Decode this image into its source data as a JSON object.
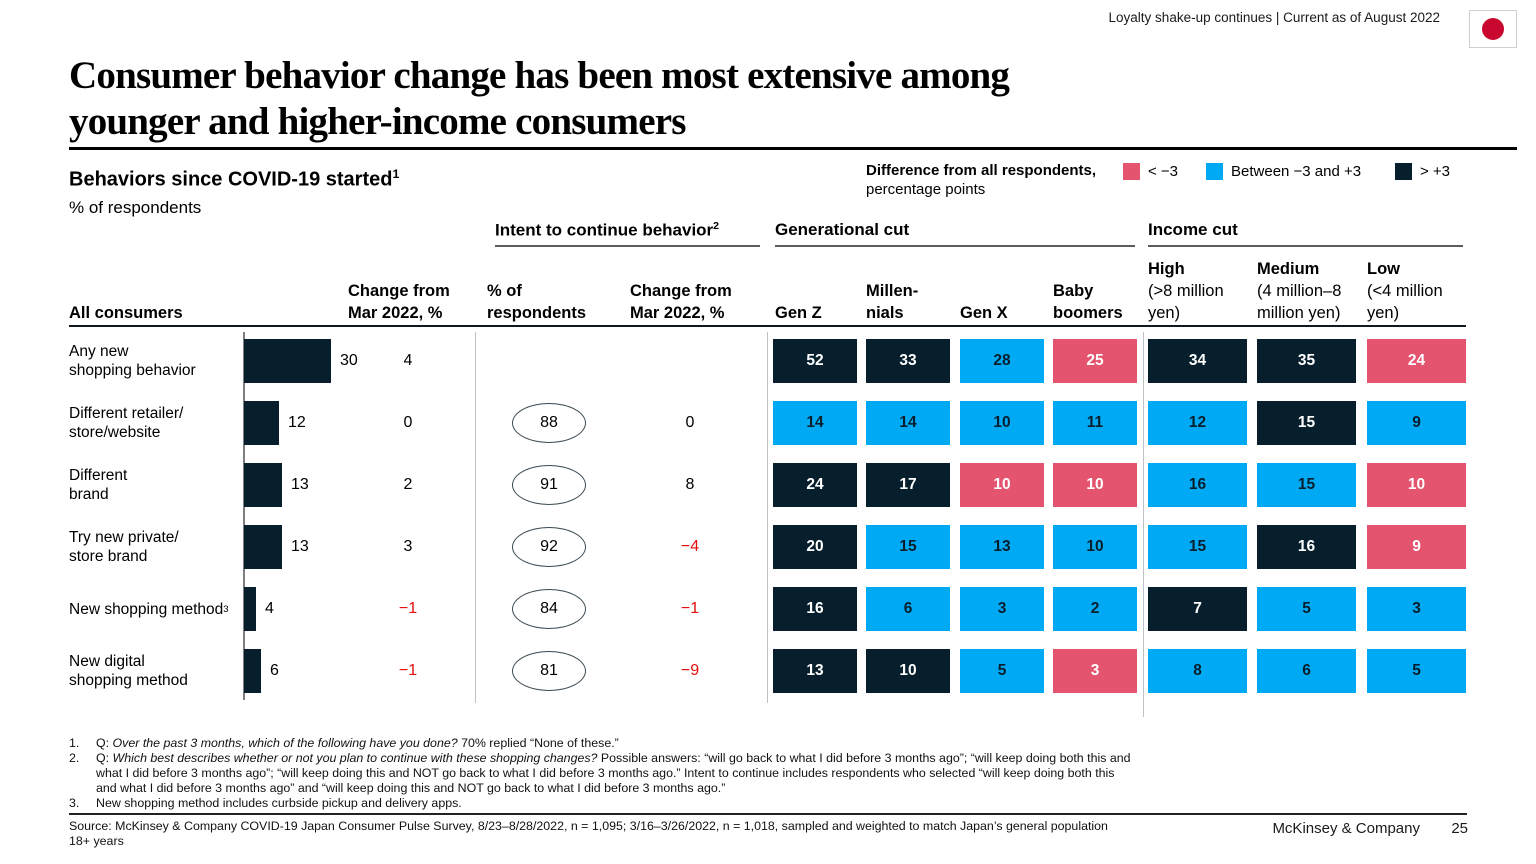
{
  "page": {
    "header_note": "Loyalty shake-up continues | Current as of August 2022",
    "title": "Consumer behavior change has been most extensive among\nyounger and higher-income consumers",
    "footer_brand": "McKinsey & Company",
    "footer_page": "25",
    "flag_red": "#c9082f",
    "negative_color": "#e50b0b"
  },
  "exhibit": {
    "title": "Behaviors since COVID-19 started",
    "title_sup": "1",
    "subtitle": "% of respondents"
  },
  "legend": {
    "title_bold": "Difference from all respondents,",
    "title_line2": "percentage points",
    "items": [
      {
        "label": "< −3",
        "color": "#e5546f",
        "band": "below"
      },
      {
        "label": "Between −3 and +3",
        "color": "#00a9f4",
        "band": "mid"
      },
      {
        "label": "> +3",
        "color": "#071f2d",
        "band": "above"
      }
    ]
  },
  "groups": {
    "intent_label": "Intent to continue behavior",
    "intent_sup": "2",
    "generational_label": "Generational cut",
    "income_label": "Income cut"
  },
  "columns": {
    "all_consumers": "All consumers",
    "change1": "Change from\nMar 2022, %",
    "pct_respondents": "% of\nrespondents",
    "change2": "Change from\nMar 2022, %",
    "gen": [
      "Gen Z",
      "Millen-\nnials",
      "Gen X",
      "Baby\nboomers"
    ],
    "income": [
      {
        "name": "High",
        "range": "(>8 million\nyen)"
      },
      {
        "name": "Medium",
        "range": "(4 million–8\nmillion yen)"
      },
      {
        "name": "Low",
        "range": "(<4 million\nyen)"
      }
    ]
  },
  "chart_data": {
    "type": "table",
    "title": "Behaviors since COVID-19 started",
    "unit": "% of respondents",
    "band_legend": {
      "below": "< −3",
      "mid": "Between −3 and +3",
      "above": "> +3"
    },
    "cell_columns": [
      "Gen Z",
      "Millennials",
      "Gen X",
      "Baby boomers",
      "High (>8 million yen)",
      "Medium (4 million–8 million yen)",
      "Low (<4 million yen)"
    ],
    "rows": [
      {
        "label": "Any new\nshopping behavior",
        "sup": "",
        "all_consumers": 30,
        "change_from_mar": "4",
        "change_negative": false,
        "intent_pct": null,
        "intent_change": null,
        "intent_change_negative": false,
        "cells": [
          {
            "value": "52",
            "band": "above"
          },
          {
            "value": "33",
            "band": "above"
          },
          {
            "value": "28",
            "band": "mid"
          },
          {
            "value": "25",
            "band": "below"
          },
          {
            "value": "34",
            "band": "above"
          },
          {
            "value": "35",
            "band": "above"
          },
          {
            "value": "24",
            "band": "below"
          }
        ]
      },
      {
        "label": "Different retailer/\nstore/website",
        "sup": "",
        "all_consumers": 12,
        "change_from_mar": "0",
        "change_negative": false,
        "intent_pct": "88",
        "intent_change": "0",
        "intent_change_negative": false,
        "cells": [
          {
            "value": "14",
            "band": "mid"
          },
          {
            "value": "14",
            "band": "mid"
          },
          {
            "value": "10",
            "band": "mid"
          },
          {
            "value": "11",
            "band": "mid"
          },
          {
            "value": "12",
            "band": "mid"
          },
          {
            "value": "15",
            "band": "above"
          },
          {
            "value": "9",
            "band": "mid"
          }
        ]
      },
      {
        "label": "Different\nbrand",
        "sup": "",
        "all_consumers": 13,
        "change_from_mar": "2",
        "change_negative": false,
        "intent_pct": "91",
        "intent_change": "8",
        "intent_change_negative": false,
        "cells": [
          {
            "value": "24",
            "band": "above"
          },
          {
            "value": "17",
            "band": "above"
          },
          {
            "value": "10",
            "band": "below"
          },
          {
            "value": "10",
            "band": "below"
          },
          {
            "value": "16",
            "band": "mid"
          },
          {
            "value": "15",
            "band": "mid"
          },
          {
            "value": "10",
            "band": "below"
          }
        ]
      },
      {
        "label": "Try new private/\nstore brand",
        "sup": "",
        "all_consumers": 13,
        "change_from_mar": "3",
        "change_negative": false,
        "intent_pct": "92",
        "intent_change": "−4",
        "intent_change_negative": true,
        "cells": [
          {
            "value": "20",
            "band": "above"
          },
          {
            "value": "15",
            "band": "mid"
          },
          {
            "value": "13",
            "band": "mid"
          },
          {
            "value": "10",
            "band": "mid"
          },
          {
            "value": "15",
            "band": "mid"
          },
          {
            "value": "16",
            "band": "above"
          },
          {
            "value": "9",
            "band": "below"
          }
        ]
      },
      {
        "label": "New shopping method",
        "sup": "3",
        "all_consumers": 4,
        "change_from_mar": "−1",
        "change_negative": true,
        "intent_pct": "84",
        "intent_change": "−1",
        "intent_change_negative": true,
        "cells": [
          {
            "value": "16",
            "band": "above"
          },
          {
            "value": "6",
            "band": "mid"
          },
          {
            "value": "3",
            "band": "mid"
          },
          {
            "value": "2",
            "band": "mid"
          },
          {
            "value": "7",
            "band": "above"
          },
          {
            "value": "5",
            "band": "mid"
          },
          {
            "value": "3",
            "band": "mid"
          }
        ]
      },
      {
        "label": "New digital\nshopping method",
        "sup": "",
        "all_consumers": 6,
        "change_from_mar": "−1",
        "change_negative": true,
        "intent_pct": "81",
        "intent_change": "−9",
        "intent_change_negative": true,
        "cells": [
          {
            "value": "13",
            "band": "above"
          },
          {
            "value": "10",
            "band": "above"
          },
          {
            "value": "5",
            "band": "mid"
          },
          {
            "value": "3",
            "band": "below"
          },
          {
            "value": "8",
            "band": "mid"
          },
          {
            "value": "6",
            "band": "mid"
          },
          {
            "value": "5",
            "band": "mid"
          }
        ]
      }
    ]
  },
  "footnotes": [
    {
      "num": "1.",
      "pre": "Q: ",
      "italic": "Over the past 3 months, which of the following have you done?",
      "rest": " 70% replied “None of these.”"
    },
    {
      "num": "2.",
      "pre": "Q: ",
      "italic": "Which best describes whether or not you plan to continue with these shopping changes?",
      "rest": " Possible answers: “will go back to what I did before 3 months ago”; “will keep doing both this and what I did before 3 months ago”; “will keep doing this and NOT go back to what I did before 3 months ago.” Intent to continue includes respondents who selected “will keep doing both this and what I did before 3 months ago” and “will keep doing this and NOT go back to what I did before 3 months ago.”"
    },
    {
      "num": "3.",
      "pre": "",
      "italic": "",
      "rest": "New shopping method includes curbside pickup and delivery apps."
    }
  ],
  "source": "Source: McKinsey & Company COVID-19 Japan Consumer Pulse Survey, 8/23–8/28/2022, n = 1,095; 3/16–3/26/2022, n = 1,018, sampled and weighted to match Japan’s general population 18+ years"
}
